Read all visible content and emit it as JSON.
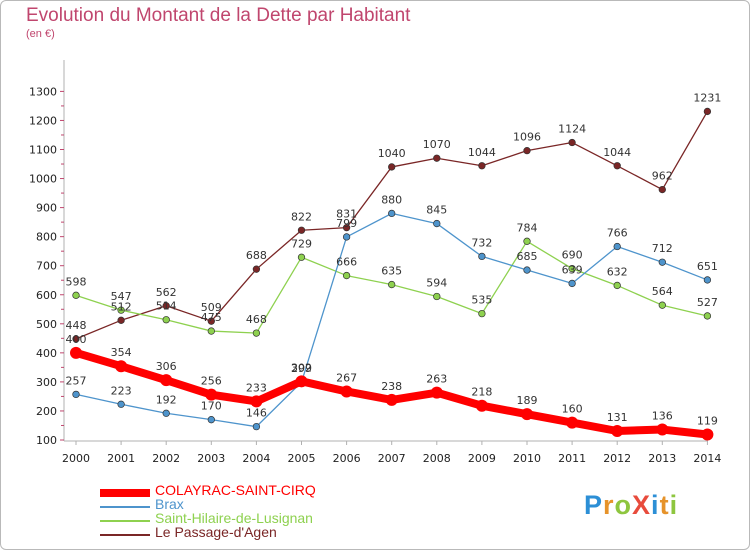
{
  "title": "Evolution du Montant de la Dette par Habitant",
  "subtitle": "(en €)",
  "logo": {
    "text": "ProXiti",
    "letters": [
      "P",
      "r",
      "o",
      "X",
      "i",
      "t",
      "i"
    ],
    "colors": [
      "#2c8fd6",
      "#e6932a",
      "#8ec63f",
      "#e84b3c",
      "#2c8fd6",
      "#e6932a",
      "#8ec63f"
    ]
  },
  "chart_data": {
    "type": "line",
    "title": "Evolution du Montant de la Dette par Habitant",
    "ylabel": "(en €)",
    "xlabel": "",
    "x": [
      "2000",
      "2001",
      "2002",
      "2003",
      "2004",
      "2005",
      "2006",
      "2007",
      "2008",
      "2009",
      "2010",
      "2011",
      "2012",
      "2013",
      "2014"
    ],
    "ylim": [
      100,
      1300
    ],
    "yticks": [
      100,
      200,
      300,
      400,
      500,
      600,
      700,
      800,
      900,
      1000,
      1100,
      1200,
      1300
    ],
    "grid": false,
    "legend_position": "bottom-left",
    "series": [
      {
        "name": "COLAYRAC-SAINT-CIRQ",
        "color": "#ff0000",
        "values": [
          400,
          354,
          306,
          256,
          233,
          302,
          267,
          238,
          263,
          218,
          189,
          160,
          131,
          136,
          119
        ]
      },
      {
        "name": "Brax",
        "color": "#4e94cc",
        "values": [
          257,
          223,
          192,
          170,
          146,
          299,
          799,
          880,
          845,
          732,
          685,
          639,
          766,
          712,
          651
        ]
      },
      {
        "name": "Saint-Hilaire-de-Lusignan",
        "color": "#8ed14f",
        "values": [
          598,
          547,
          514,
          475,
          468,
          729,
          666,
          635,
          594,
          535,
          784,
          690,
          632,
          564,
          527
        ]
      },
      {
        "name": "Le Passage-d'Agen",
        "color": "#7a2626",
        "values": [
          448,
          512,
          562,
          509,
          688,
          822,
          831,
          1040,
          1070,
          1044,
          1096,
          1124,
          1044,
          962,
          1231
        ]
      }
    ]
  }
}
